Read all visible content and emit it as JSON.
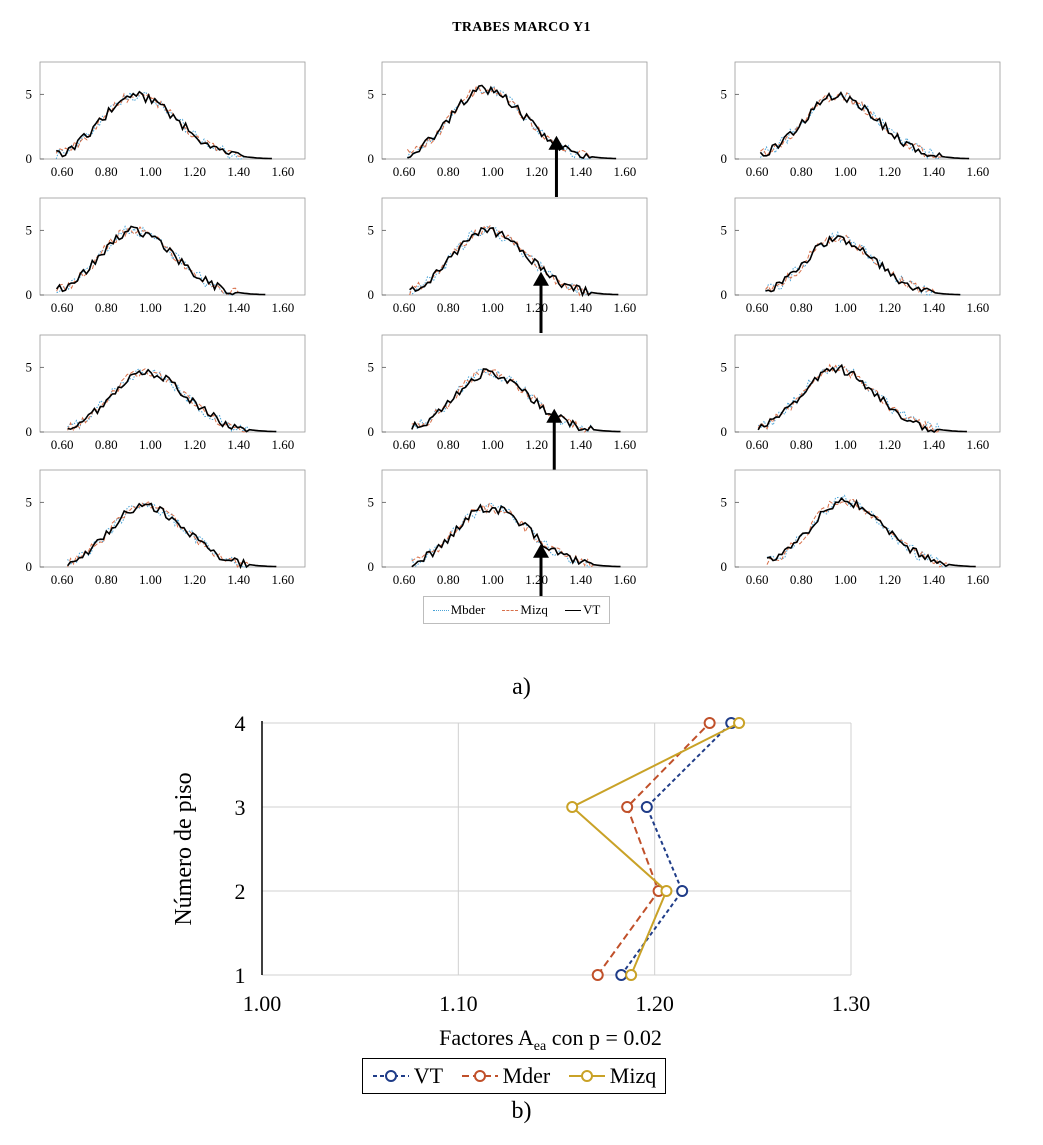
{
  "figure": {
    "main_title": "TRABES MARCO Y1",
    "panel_a_label": "a)",
    "panel_b_label": "b)"
  },
  "colors": {
    "vt_dark": "#000000",
    "mbder_blue": "#4aa3d6",
    "mizq_orange": "#d8704a",
    "vt_navy": "#1f3c88",
    "mder_red": "#c0502a",
    "mizq_gold": "#c9a227"
  },
  "chart_data": [
    {
      "type": "line",
      "title": "TRABES MARCO Y1",
      "grid_rows": 4,
      "grid_cols": 3,
      "xlim": [
        0.5,
        1.7
      ],
      "ylim": [
        0,
        7.5
      ],
      "xticks": [
        "0.60",
        "0.80",
        "1.00",
        "1.20",
        "1.40",
        "1.60"
      ],
      "yticks": [
        "0",
        "5"
      ],
      "legend": [
        "Mbder",
        "Mizq",
        "VT"
      ],
      "legend_position": "bottom-center",
      "panels": [
        {
          "row": 1,
          "col": 1,
          "center": 0.93,
          "sigma": 0.155,
          "peak": 4.9,
          "arrow_x": null
        },
        {
          "row": 1,
          "col": 2,
          "center": 0.96,
          "sigma": 0.15,
          "peak": 5.4,
          "arrow_x": 1.29
        },
        {
          "row": 1,
          "col": 3,
          "center": 0.96,
          "sigma": 0.15,
          "peak": 4.9,
          "arrow_x": null
        },
        {
          "row": 2,
          "col": 1,
          "center": 0.92,
          "sigma": 0.15,
          "peak": 5.0,
          "arrow_x": null
        },
        {
          "row": 2,
          "col": 2,
          "center": 0.97,
          "sigma": 0.15,
          "peak": 5.0,
          "arrow_x": 1.22
        },
        {
          "row": 2,
          "col": 3,
          "center": 0.96,
          "sigma": 0.14,
          "peak": 4.4,
          "arrow_x": null
        },
        {
          "row": 3,
          "col": 1,
          "center": 0.97,
          "sigma": 0.15,
          "peak": 4.7,
          "arrow_x": null
        },
        {
          "row": 3,
          "col": 2,
          "center": 0.98,
          "sigma": 0.15,
          "peak": 4.6,
          "arrow_x": 1.28
        },
        {
          "row": 3,
          "col": 3,
          "center": 0.95,
          "sigma": 0.15,
          "peak": 4.9,
          "arrow_x": null
        },
        {
          "row": 4,
          "col": 1,
          "center": 0.97,
          "sigma": 0.15,
          "peak": 4.8,
          "arrow_x": null
        },
        {
          "row": 4,
          "col": 2,
          "center": 0.98,
          "sigma": 0.15,
          "peak": 4.6,
          "arrow_x": 1.22
        },
        {
          "row": 4,
          "col": 3,
          "center": 0.99,
          "sigma": 0.15,
          "peak": 5.1,
          "arrow_x": null
        }
      ]
    },
    {
      "type": "line",
      "xlabel_main": "Factores A",
      "xlabel_sub": "ea",
      "xlabel_tail": " con p = 0.02",
      "ylabel": "Número de piso",
      "xlim": [
        1.0,
        1.3
      ],
      "ylim": [
        1,
        4
      ],
      "xticks": [
        "1.00",
        "1.10",
        "1.20",
        "1.30"
      ],
      "yticks": [
        "1",
        "2",
        "3",
        "4"
      ],
      "grid": true,
      "legend_position": "bottom-center",
      "floors": [
        1,
        2,
        3,
        4
      ],
      "series": [
        {
          "name": "VT",
          "style": "dash-dot",
          "values": [
            1.183,
            1.214,
            1.196,
            1.239
          ]
        },
        {
          "name": "Mder",
          "style": "dash",
          "values": [
            1.171,
            1.202,
            1.186,
            1.228
          ]
        },
        {
          "name": "Mizq",
          "style": "solid",
          "values": [
            1.188,
            1.206,
            1.158,
            1.243
          ]
        }
      ]
    }
  ],
  "legend_b": {
    "items": [
      {
        "label": "VT"
      },
      {
        "label": "Mder"
      },
      {
        "label": "Mizq"
      }
    ]
  }
}
